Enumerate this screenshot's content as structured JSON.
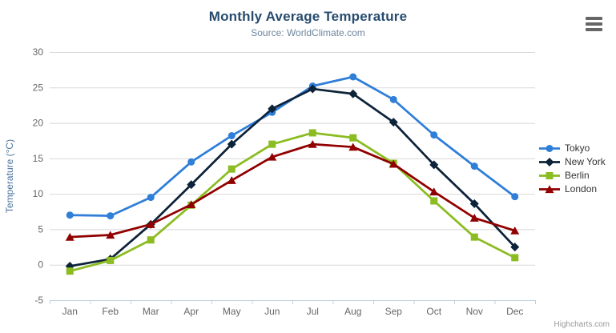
{
  "chart": {
    "title": "Monthly Average Temperature",
    "subtitle": "Source: WorldClimate.com",
    "credit": "Highcharts.com",
    "export_menu_icon": "hamburger-icon"
  },
  "colors": {
    "title": "#274b6d",
    "subtitle": "#6d869f",
    "grid": "#d8d8d8",
    "axis_line": "#c0d0e0",
    "tick_label": "#666666",
    "axis_title": "#4d759e",
    "legend_text": "#333333",
    "credit": "#999999",
    "burger": "#666666"
  },
  "chart_data": {
    "type": "line",
    "title": "Monthly Average Temperature",
    "subtitle": "Source: WorldClimate.com",
    "xlabel": "",
    "ylabel": "Temperature (°C)",
    "ylim": [
      -5,
      30
    ],
    "ytick_step": 5,
    "grid": true,
    "legend_position": "right",
    "categories": [
      "Jan",
      "Feb",
      "Mar",
      "Apr",
      "May",
      "Jun",
      "Jul",
      "Aug",
      "Sep",
      "Oct",
      "Nov",
      "Dec"
    ],
    "series": [
      {
        "name": "Tokyo",
        "color": "#2f7ed8",
        "marker": "circle",
        "values": [
          7.0,
          6.9,
          9.5,
          14.5,
          18.2,
          21.5,
          25.2,
          26.5,
          23.3,
          18.3,
          13.9,
          9.6
        ]
      },
      {
        "name": "New York",
        "color": "#0d233a",
        "marker": "diamond",
        "values": [
          -0.2,
          0.8,
          5.7,
          11.3,
          17.0,
          22.0,
          24.8,
          24.1,
          20.1,
          14.1,
          8.6,
          2.5
        ]
      },
      {
        "name": "Berlin",
        "color": "#8bbc21",
        "marker": "square",
        "values": [
          -0.9,
          0.6,
          3.5,
          8.4,
          13.5,
          17.0,
          18.6,
          17.9,
          14.3,
          9.0,
          3.9,
          1.0
        ]
      },
      {
        "name": "London",
        "color": "#910000",
        "marker": "triangle",
        "values": [
          3.9,
          4.2,
          5.7,
          8.5,
          11.9,
          15.2,
          17.0,
          16.6,
          14.2,
          10.3,
          6.6,
          4.8
        ]
      }
    ]
  }
}
